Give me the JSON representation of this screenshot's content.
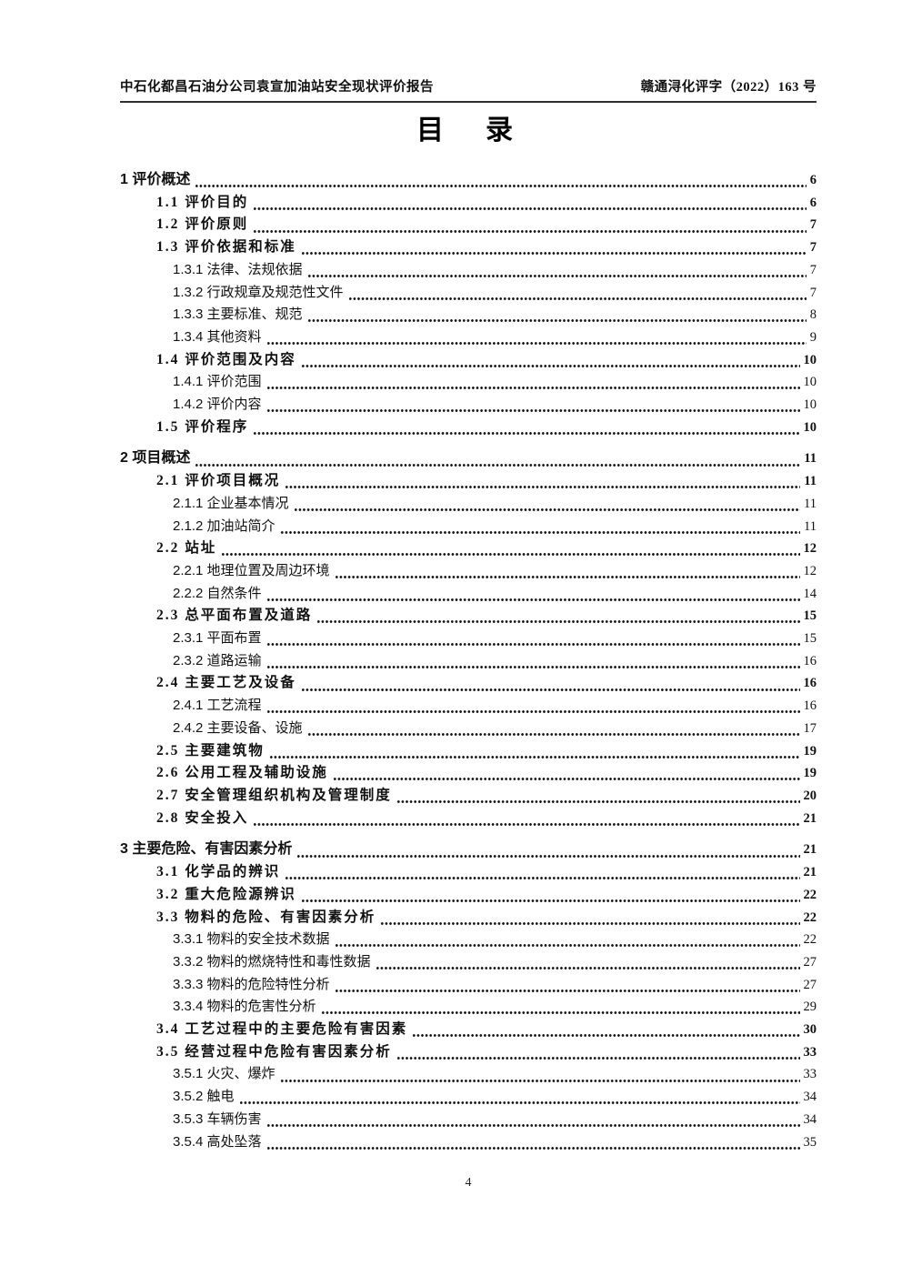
{
  "header": {
    "left": "中石化都昌石油分公司袁宣加油站安全现状评价报告",
    "right": "赣通浔化评字（2022）163 号"
  },
  "title": "目　录",
  "toc": {
    "entries": [
      {
        "level": 1,
        "label": "1 评价概述",
        "page": "6"
      },
      {
        "level": 2,
        "label": "1.1 评价目的",
        "page": "6"
      },
      {
        "level": 2,
        "label": "1.2 评价原则",
        "page": "7"
      },
      {
        "level": 2,
        "label": "1.3 评价依据和标准",
        "page": "7"
      },
      {
        "level": 3,
        "label": "1.3.1 法律、法规依据",
        "page": "7"
      },
      {
        "level": 3,
        "label": "1.3.2 行政规章及规范性文件",
        "page": "7"
      },
      {
        "level": 3,
        "label": "1.3.3 主要标准、规范",
        "page": "8"
      },
      {
        "level": 3,
        "label": "1.3.4 其他资料",
        "page": "9"
      },
      {
        "level": 2,
        "label": "1.4 评价范围及内容",
        "page": "10"
      },
      {
        "level": 3,
        "label": "1.4.1 评价范围",
        "page": "10"
      },
      {
        "level": 3,
        "label": "1.4.2 评价内容",
        "page": "10"
      },
      {
        "level": 2,
        "label": "1.5 评价程序",
        "page": "10"
      },
      {
        "level": 1,
        "label": "2 项目概述",
        "page": "11"
      },
      {
        "level": 2,
        "label": "2.1 评价项目概况",
        "page": "11"
      },
      {
        "level": 3,
        "label": "2.1.1 企业基本情况",
        "page": "11"
      },
      {
        "level": 3,
        "label": "2.1.2 加油站简介",
        "page": "11"
      },
      {
        "level": 2,
        "label": "2.2 站址",
        "page": "12"
      },
      {
        "level": 3,
        "label": "2.2.1 地理位置及周边环境",
        "page": "12"
      },
      {
        "level": 3,
        "label": "2.2.2 自然条件",
        "page": "14"
      },
      {
        "level": 2,
        "label": "2.3 总平面布置及道路",
        "page": "15"
      },
      {
        "level": 3,
        "label": "2.3.1 平面布置",
        "page": "15"
      },
      {
        "level": 3,
        "label": "2.3.2 道路运输",
        "page": "16"
      },
      {
        "level": 2,
        "label": "2.4 主要工艺及设备",
        "page": "16"
      },
      {
        "level": 3,
        "label": "2.4.1 工艺流程",
        "page": "16"
      },
      {
        "level": 3,
        "label": "2.4.2 主要设备、设施",
        "page": "17"
      },
      {
        "level": 2,
        "label": "2.5 主要建筑物",
        "page": "19"
      },
      {
        "level": 2,
        "label": "2.6 公用工程及辅助设施",
        "page": "19"
      },
      {
        "level": 2,
        "label": "2.7 安全管理组织机构及管理制度",
        "page": "20"
      },
      {
        "level": 2,
        "label": "2.8 安全投入",
        "page": "21"
      },
      {
        "level": 1,
        "label": "3 主要危险、有害因素分析",
        "page": "21"
      },
      {
        "level": 2,
        "label": "3.1 化学品的辨识",
        "page": "21"
      },
      {
        "level": 2,
        "label": "3.2 重大危险源辨识",
        "page": "22"
      },
      {
        "level": 2,
        "label": "3.3 物料的危险、有害因素分析",
        "page": "22"
      },
      {
        "level": 3,
        "label": "3.3.1 物料的安全技术数据",
        "page": "22"
      },
      {
        "level": 3,
        "label": "3.3.2 物料的燃烧特性和毒性数据",
        "page": "27"
      },
      {
        "level": 3,
        "label": "3.3.3 物料的危险特性分析",
        "page": "27"
      },
      {
        "level": 3,
        "label": "3.3.4 物料的危害性分析",
        "page": "29"
      },
      {
        "level": 2,
        "label": "3.4 工艺过程中的主要危险有害因素",
        "page": "30"
      },
      {
        "level": 2,
        "label": "3.5 经营过程中危险有害因素分析",
        "page": "33"
      },
      {
        "level": 3,
        "label": "3.5.1 火灾、爆炸",
        "page": "33"
      },
      {
        "level": 3,
        "label": "3.5.2 触电",
        "page": "34"
      },
      {
        "level": 3,
        "label": "3.5.3 车辆伤害",
        "page": "34"
      },
      {
        "level": 3,
        "label": "3.5.4 高处坠落",
        "page": "35"
      }
    ]
  },
  "footer": {
    "page_number": "4"
  }
}
